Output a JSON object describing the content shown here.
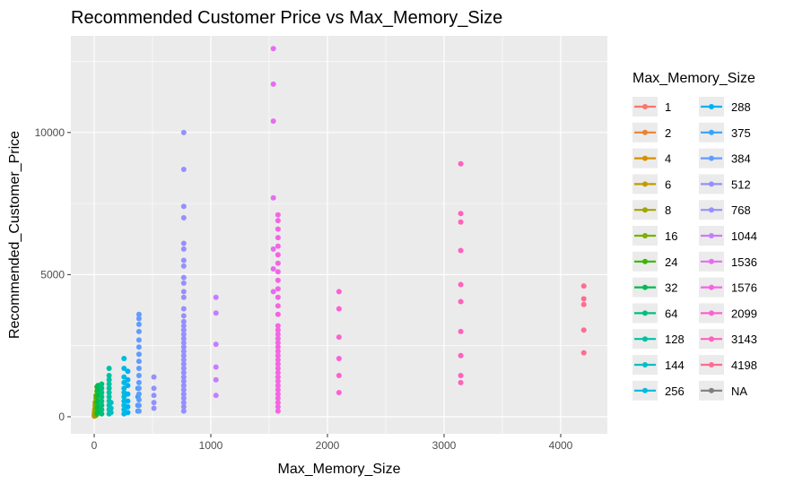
{
  "chart_data": {
    "type": "scatter",
    "title": "Recommended Customer Price vs Max_Memory_Size",
    "xlabel": "Max_Memory_Size",
    "ylabel": "Recommended_Customer_Price",
    "xlim": [
      -200,
      4400
    ],
    "ylim": [
      -600,
      13400
    ],
    "x_ticks": [
      0,
      1000,
      2000,
      3000,
      4000
    ],
    "x_tick_labels": [
      "0",
      "1000",
      "2000",
      "3000",
      "4000"
    ],
    "y_ticks": [
      0,
      5000,
      10000
    ],
    "y_tick_labels": [
      "0",
      "5000",
      "10000"
    ],
    "grid": true,
    "legend_title": "Max_Memory_Size",
    "legend_position": "right",
    "series": [
      {
        "name": "1",
        "color": "#F8766D",
        "points": [
          [
            1,
            20
          ],
          [
            1,
            40
          ],
          [
            1,
            60
          ]
        ]
      },
      {
        "name": "2",
        "color": "#EA8331",
        "points": [
          [
            2,
            30
          ],
          [
            2,
            80
          ],
          [
            2,
            130
          ]
        ]
      },
      {
        "name": "4",
        "color": "#D89000",
        "points": [
          [
            4,
            50
          ],
          [
            4,
            100
          ],
          [
            4,
            180
          ],
          [
            4,
            250
          ]
        ]
      },
      {
        "name": "6",
        "color": "#C09B00",
        "points": [
          [
            6,
            60
          ],
          [
            6,
            140
          ],
          [
            6,
            220
          ]
        ]
      },
      {
        "name": "8",
        "color": "#A3A500",
        "points": [
          [
            8,
            40
          ],
          [
            8,
            120
          ],
          [
            8,
            200
          ],
          [
            8,
            300
          ],
          [
            8,
            400
          ],
          [
            8,
            500
          ]
        ]
      },
      {
        "name": "16",
        "color": "#7CAE00",
        "points": [
          [
            16,
            50
          ],
          [
            16,
            150
          ],
          [
            16,
            250
          ],
          [
            16,
            350
          ],
          [
            16,
            450
          ],
          [
            16,
            550
          ],
          [
            16,
            650
          ],
          [
            16,
            750
          ]
        ]
      },
      {
        "name": "24",
        "color": "#39B600",
        "points": [
          [
            24,
            100
          ],
          [
            24,
            300
          ],
          [
            24,
            500
          ],
          [
            24,
            700
          ],
          [
            24,
            900
          ],
          [
            24,
            1050
          ]
        ]
      },
      {
        "name": "32",
        "color": "#00BB4E",
        "points": [
          [
            32,
            150
          ],
          [
            32,
            350
          ],
          [
            32,
            550
          ],
          [
            32,
            750
          ],
          [
            32,
            950
          ],
          [
            32,
            1100
          ]
        ]
      },
      {
        "name": "64",
        "color": "#00BF7D",
        "points": [
          [
            64,
            100
          ],
          [
            64,
            250
          ],
          [
            64,
            400
          ],
          [
            64,
            550
          ],
          [
            64,
            700
          ],
          [
            64,
            850
          ],
          [
            64,
            1000
          ],
          [
            64,
            1150
          ]
        ]
      },
      {
        "name": "128",
        "color": "#00C1A3",
        "points": [
          [
            128,
            100
          ],
          [
            128,
            250
          ],
          [
            128,
            400
          ],
          [
            128,
            550
          ],
          [
            128,
            700
          ],
          [
            128,
            850
          ],
          [
            128,
            1000
          ],
          [
            128,
            1150
          ],
          [
            128,
            1300
          ],
          [
            128,
            1450
          ],
          [
            128,
            1700
          ]
        ]
      },
      {
        "name": "144",
        "color": "#00BFC4",
        "points": [
          [
            144,
            150
          ],
          [
            144,
            300
          ],
          [
            144,
            500
          ]
        ]
      },
      {
        "name": "256",
        "color": "#00BAE0",
        "points": [
          [
            256,
            100
          ],
          [
            256,
            250
          ],
          [
            256,
            400
          ],
          [
            256,
            550
          ],
          [
            256,
            700
          ],
          [
            256,
            850
          ],
          [
            256,
            1000
          ],
          [
            256,
            1200
          ],
          [
            256,
            1400
          ],
          [
            256,
            1700
          ],
          [
            256,
            2050
          ]
        ]
      },
      {
        "name": "288",
        "color": "#00B0F6",
        "points": [
          [
            288,
            150
          ],
          [
            288,
            350
          ],
          [
            288,
            550
          ],
          [
            288,
            800
          ],
          [
            288,
            1100
          ],
          [
            288,
            1300
          ],
          [
            288,
            1600
          ]
        ]
      },
      {
        "name": "375",
        "color": "#35A2FF",
        "points": [
          [
            375,
            200
          ],
          [
            375,
            400
          ],
          [
            375,
            700
          ],
          [
            375,
            1000
          ]
        ]
      },
      {
        "name": "384",
        "color": "#619CFF",
        "points": [
          [
            384,
            200
          ],
          [
            384,
            400
          ],
          [
            384,
            600
          ],
          [
            384,
            800
          ],
          [
            384,
            1000
          ],
          [
            384,
            1200
          ],
          [
            384,
            1450
          ],
          [
            384,
            1700
          ],
          [
            384,
            1950
          ],
          [
            384,
            2200
          ],
          [
            384,
            2450
          ],
          [
            384,
            2700
          ],
          [
            384,
            3000
          ],
          [
            384,
            3250
          ],
          [
            384,
            3450
          ],
          [
            384,
            3600
          ]
        ]
      },
      {
        "name": "512",
        "color": "#9590FF",
        "points": [
          [
            512,
            300
          ],
          [
            512,
            500
          ],
          [
            512,
            750
          ],
          [
            512,
            1000
          ],
          [
            512,
            1400
          ]
        ]
      },
      {
        "name": "768",
        "color": "#9590FF",
        "points": [
          [
            768,
            200
          ],
          [
            768,
            350
          ],
          [
            768,
            500
          ],
          [
            768,
            650
          ],
          [
            768,
            800
          ],
          [
            768,
            950
          ],
          [
            768,
            1100
          ],
          [
            768,
            1250
          ],
          [
            768,
            1400
          ],
          [
            768,
            1550
          ],
          [
            768,
            1700
          ],
          [
            768,
            1850
          ],
          [
            768,
            2000
          ],
          [
            768,
            2150
          ],
          [
            768,
            2300
          ],
          [
            768,
            2450
          ],
          [
            768,
            2600
          ],
          [
            768,
            2750
          ],
          [
            768,
            2900
          ],
          [
            768,
            3050
          ],
          [
            768,
            3200
          ],
          [
            768,
            3350
          ],
          [
            768,
            3550
          ],
          [
            768,
            3800
          ],
          [
            768,
            4200
          ],
          [
            768,
            4400
          ],
          [
            768,
            4700
          ],
          [
            768,
            4900
          ],
          [
            768,
            5300
          ],
          [
            768,
            5500
          ],
          [
            768,
            5900
          ],
          [
            768,
            6100
          ],
          [
            768,
            7000
          ],
          [
            768,
            7400
          ],
          [
            768,
            8700
          ],
          [
            768,
            10000
          ]
        ]
      },
      {
        "name": "1044",
        "color": "#C77CFF",
        "points": [
          [
            1044,
            750
          ],
          [
            1044,
            1300
          ],
          [
            1044,
            1750
          ],
          [
            1044,
            2550
          ],
          [
            1044,
            3650
          ],
          [
            1044,
            4200
          ]
        ]
      },
      {
        "name": "1536",
        "color": "#E76BF3",
        "points": [
          [
            1536,
            4400
          ],
          [
            1536,
            5200
          ],
          [
            1536,
            5900
          ],
          [
            1536,
            7700
          ],
          [
            1536,
            10400
          ],
          [
            1536,
            11700
          ],
          [
            1536,
            12950
          ]
        ]
      },
      {
        "name": "1576",
        "color": "#F564E3",
        "points": [
          [
            1576,
            200
          ],
          [
            1576,
            350
          ],
          [
            1576,
            500
          ],
          [
            1576,
            650
          ],
          [
            1576,
            800
          ],
          [
            1576,
            950
          ],
          [
            1576,
            1100
          ],
          [
            1576,
            1250
          ],
          [
            1576,
            1400
          ],
          [
            1576,
            1550
          ],
          [
            1576,
            1700
          ],
          [
            1576,
            1850
          ],
          [
            1576,
            2000
          ],
          [
            1576,
            2150
          ],
          [
            1576,
            2300
          ],
          [
            1576,
            2450
          ],
          [
            1576,
            2600
          ],
          [
            1576,
            2750
          ],
          [
            1576,
            2900
          ],
          [
            1576,
            3050
          ],
          [
            1576,
            3200
          ],
          [
            1576,
            3600
          ],
          [
            1576,
            3900
          ],
          [
            1576,
            4200
          ],
          [
            1576,
            4500
          ],
          [
            1576,
            4800
          ],
          [
            1576,
            5100
          ],
          [
            1576,
            5400
          ],
          [
            1576,
            5700
          ],
          [
            1576,
            6000
          ],
          [
            1576,
            6300
          ],
          [
            1576,
            6600
          ],
          [
            1576,
            6900
          ],
          [
            1576,
            7100
          ]
        ]
      },
      {
        "name": "2099",
        "color": "#FD61D1",
        "points": [
          [
            2099,
            850
          ],
          [
            2099,
            1450
          ],
          [
            2099,
            2050
          ],
          [
            2099,
            2800
          ],
          [
            2099,
            3800
          ],
          [
            2099,
            4400
          ]
        ]
      },
      {
        "name": "3143",
        "color": "#FF62BC",
        "points": [
          [
            3143,
            1200
          ],
          [
            3143,
            1450
          ],
          [
            3143,
            2150
          ],
          [
            3143,
            3000
          ],
          [
            3143,
            4050
          ],
          [
            3143,
            4650
          ],
          [
            3143,
            5850
          ],
          [
            3143,
            6850
          ],
          [
            3143,
            7150
          ],
          [
            3143,
            8900
          ]
        ]
      },
      {
        "name": "4198",
        "color": "#FF6C91",
        "points": [
          [
            4198,
            2250
          ],
          [
            4198,
            3050
          ],
          [
            4198,
            3950
          ],
          [
            4198,
            4150
          ],
          [
            4198,
            4600
          ]
        ]
      },
      {
        "name": "NA",
        "color": "#7F7F7F",
        "points": []
      }
    ]
  }
}
